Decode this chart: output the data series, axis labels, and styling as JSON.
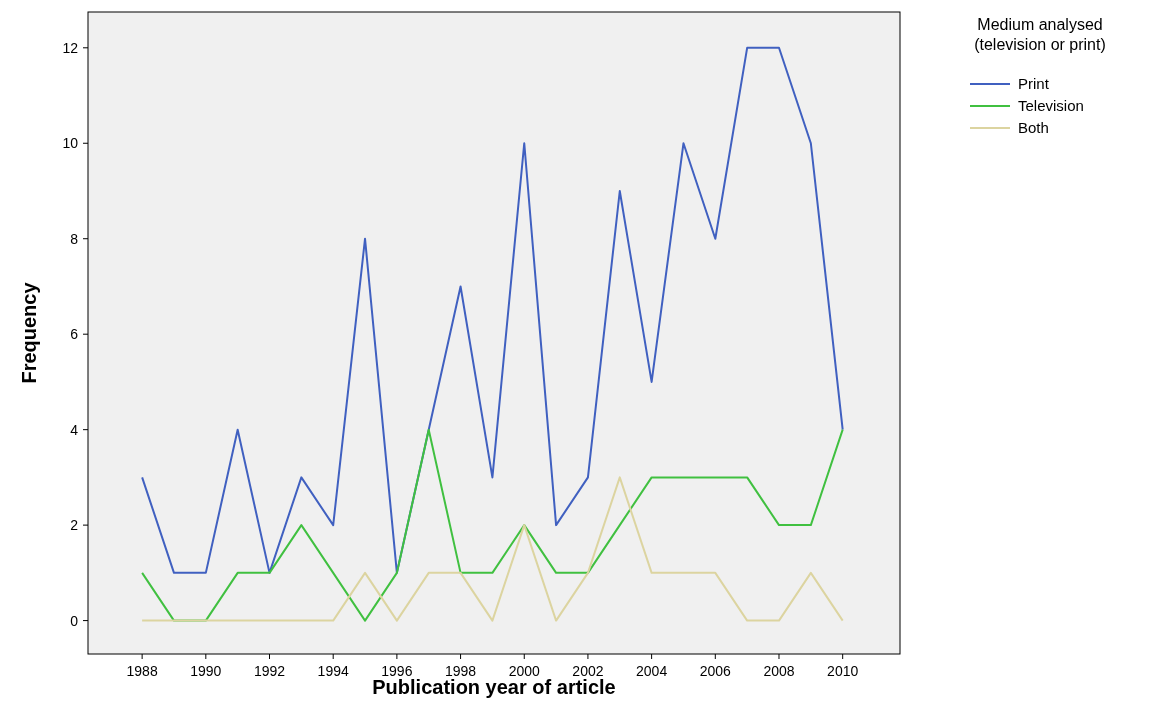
{
  "chart_data": {
    "type": "line",
    "xlabel": "Publication year of article",
    "ylabel": "Frequency",
    "legend_title": "Medium analysed\n(television or print)",
    "x": [
      1988,
      1989,
      1990,
      1991,
      1992,
      1993,
      1994,
      1995,
      1996,
      1997,
      1998,
      1999,
      2000,
      2001,
      2002,
      2003,
      2004,
      2005,
      2006,
      2007,
      2008,
      2009,
      2010
    ],
    "series": [
      {
        "name": "Print",
        "color": "#4060c0",
        "values": [
          3,
          1,
          1,
          4,
          1,
          3,
          2,
          8,
          1,
          4,
          7,
          3,
          10,
          2,
          3,
          9,
          5,
          10,
          8,
          12,
          12,
          10,
          4
        ]
      },
      {
        "name": "Television",
        "color": "#40c040",
        "values": [
          1,
          0,
          0,
          1,
          1,
          2,
          1,
          0,
          1,
          4,
          1,
          1,
          2,
          1,
          1,
          2,
          3,
          3,
          3,
          3,
          2,
          2,
          4
        ]
      },
      {
        "name": "Both",
        "color": "#dcd4a0",
        "values": [
          0,
          0,
          0,
          0,
          0,
          0,
          0,
          1,
          0,
          1,
          1,
          0,
          2,
          0,
          1,
          3,
          1,
          1,
          1,
          0,
          0,
          1,
          0
        ]
      }
    ],
    "xlim": [
      1986.3,
      2011.8
    ],
    "xticks": [
      1988,
      1990,
      1992,
      1994,
      1996,
      1998,
      2000,
      2002,
      2004,
      2006,
      2008,
      2010
    ],
    "ylim": [
      -0.7,
      12.75
    ],
    "yticks": [
      0,
      2,
      4,
      6,
      8,
      10,
      12
    ],
    "legend": "top right",
    "line_style": "solid",
    "marker": "none",
    "grid": false
  }
}
